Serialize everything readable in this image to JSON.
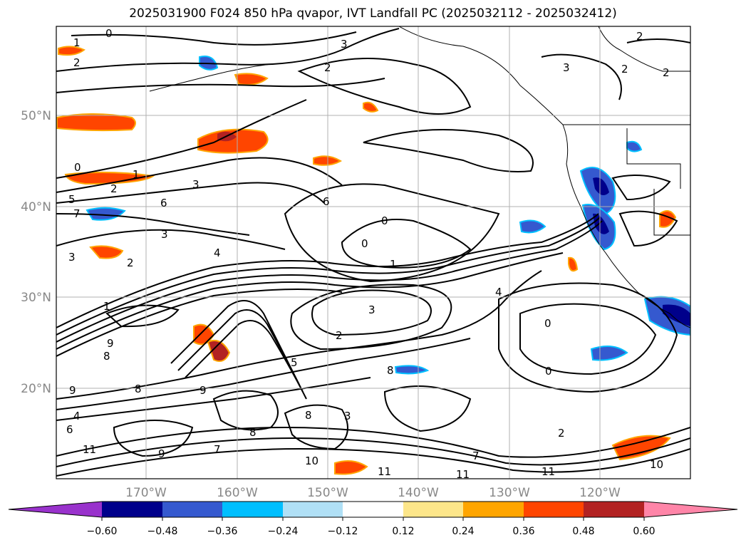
{
  "title": "2025031900 F024 850 hPa qvapor, IVT Landfall PC (2025032112 - 2025032412)",
  "lat_labels": [
    "50°N",
    "40°N",
    "30°N",
    "20°N"
  ],
  "lon_labels": [
    "170°W",
    "160°W",
    "150°W",
    "140°W",
    "130°W",
    "120°W"
  ],
  "colorbar": {
    "colors": [
      "#9932cc",
      "#00008b",
      "#3559cf",
      "#00bfff",
      "#b0e0f6",
      "#ffffff",
      "#fde68a",
      "#ffa500",
      "#ff4500",
      "#b22222",
      "#ff85a8"
    ],
    "tick_labels": [
      "−0.60",
      "−0.48",
      "−0.36",
      "−0.24",
      "−0.12",
      "0.12",
      "0.24",
      "0.36",
      "0.48",
      "0.60"
    ]
  },
  "contour_labels": [
    {
      "text": "0"
    },
    {
      "text": "1"
    },
    {
      "text": "2"
    },
    {
      "text": "3"
    },
    {
      "text": "2"
    },
    {
      "text": "2"
    },
    {
      "text": "2"
    },
    {
      "text": "2"
    },
    {
      "text": "3"
    },
    {
      "text": "0"
    },
    {
      "text": "1"
    },
    {
      "text": "2"
    },
    {
      "text": "3"
    },
    {
      "text": "5"
    },
    {
      "text": "7"
    },
    {
      "text": "6"
    },
    {
      "text": "3"
    },
    {
      "text": "6"
    },
    {
      "text": "4"
    },
    {
      "text": "3"
    },
    {
      "text": "2"
    },
    {
      "text": "1"
    },
    {
      "text": "1"
    },
    {
      "text": "0"
    },
    {
      "text": "0"
    },
    {
      "text": "4"
    },
    {
      "text": "3"
    },
    {
      "text": "2"
    },
    {
      "text": "0"
    },
    {
      "text": "0"
    },
    {
      "text": "9"
    },
    {
      "text": "8"
    },
    {
      "text": "9"
    },
    {
      "text": "8"
    },
    {
      "text": "9"
    },
    {
      "text": "4"
    },
    {
      "text": "6"
    },
    {
      "text": "11"
    },
    {
      "text": "9"
    },
    {
      "text": "7"
    },
    {
      "text": "8"
    },
    {
      "text": "10"
    },
    {
      "text": "11"
    },
    {
      "text": "11"
    },
    {
      "text": "11"
    },
    {
      "text": "10"
    },
    {
      "text": "2"
    },
    {
      "text": "7"
    },
    {
      "text": "5"
    },
    {
      "text": "8"
    },
    {
      "text": "3"
    },
    {
      "text": "8"
    }
  ]
}
